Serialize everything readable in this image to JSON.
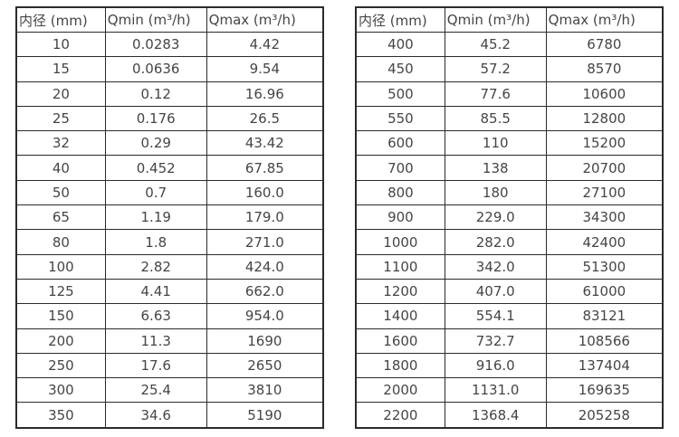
{
  "page": {
    "background_color": "#ffffff",
    "border_color": "#2b2b2b",
    "text_color": "#454545"
  },
  "tables": [
    {
      "name": "small-diameter-flow-table",
      "headers": [
        "内径 (mm)",
        "Qmin (m³/h)",
        "Qmax (m³/h)"
      ],
      "rows": [
        [
          "10",
          "0.0283",
          "4.42"
        ],
        [
          "15",
          "0.0636",
          "9.54"
        ],
        [
          "20",
          "0.12",
          "16.96"
        ],
        [
          "25",
          "0.176",
          "26.5"
        ],
        [
          "32",
          "0.29",
          "43.42"
        ],
        [
          "40",
          "0.452",
          "67.85"
        ],
        [
          "50",
          "0.7",
          "160.0"
        ],
        [
          "65",
          "1.19",
          "179.0"
        ],
        [
          "80",
          "1.8",
          "271.0"
        ],
        [
          "100",
          "2.82",
          "424.0"
        ],
        [
          "125",
          "4.41",
          "662.0"
        ],
        [
          "150",
          "6.63",
          "954.0"
        ],
        [
          "200",
          "11.3",
          "1690"
        ],
        [
          "250",
          "17.6",
          "2650"
        ],
        [
          "300",
          "25.4",
          "3810"
        ],
        [
          "350",
          "34.6",
          "5190"
        ]
      ]
    },
    {
      "name": "large-diameter-flow-table",
      "headers": [
        "内径 (mm)",
        "Qmin (m³/h)",
        "Qmax (m³/h)"
      ],
      "rows": [
        [
          "400",
          "45.2",
          "6780"
        ],
        [
          "450",
          "57.2",
          "8570"
        ],
        [
          "500",
          "77.6",
          "10600"
        ],
        [
          "550",
          "85.5",
          "12800"
        ],
        [
          "600",
          "110",
          "15200"
        ],
        [
          "700",
          "138",
          "20700"
        ],
        [
          "800",
          "180",
          "27100"
        ],
        [
          "900",
          "229.0",
          "34300"
        ],
        [
          "1000",
          "282.0",
          "42400"
        ],
        [
          "1100",
          "342.0",
          "51300"
        ],
        [
          "1200",
          "407.0",
          "61000"
        ],
        [
          "1400",
          "554.1",
          "83121"
        ],
        [
          "1600",
          "732.7",
          "108566"
        ],
        [
          "1800",
          "916.0",
          "137404"
        ],
        [
          "2000",
          "1131.0",
          "169635"
        ],
        [
          "2200",
          "1368.4",
          "205258"
        ]
      ]
    }
  ]
}
